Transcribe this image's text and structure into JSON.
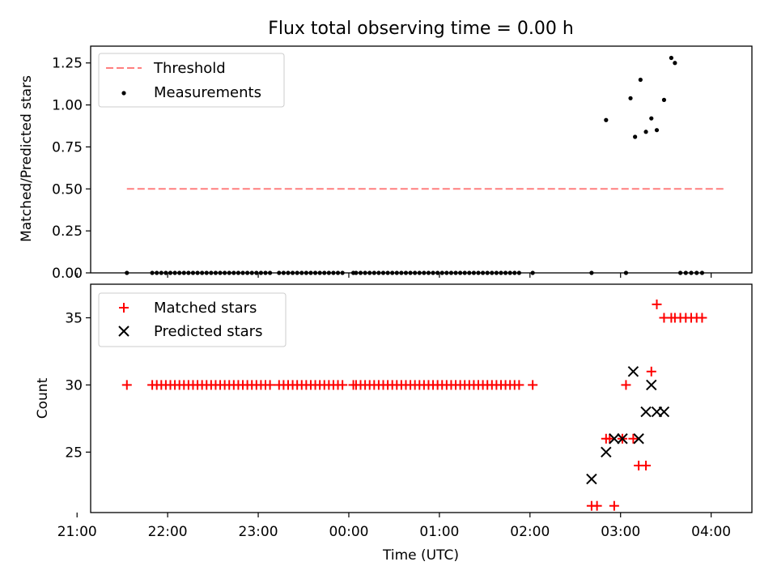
{
  "chart_data": [
    {
      "type": "scatter",
      "title": "Flux total observing time = 0.00 h",
      "ylabel": "Matched/Predicted stars",
      "xlabel": "",
      "xlim": [
        21.15,
        28.45
      ],
      "ylim": [
        0,
        1.35
      ],
      "yticks": [
        0.0,
        0.25,
        0.5,
        0.75,
        1.0,
        1.25
      ],
      "ytick_labels": [
        "0.00",
        "0.25",
        "0.50",
        "0.75",
        "1.00",
        "1.25"
      ],
      "legend": {
        "position": "top-left",
        "entries": [
          "Threshold",
          "Measurements"
        ]
      },
      "series": [
        {
          "name": "Threshold",
          "style": "dashed-line",
          "color": "#ff7f7f",
          "x": [
            21.55,
            28.17
          ],
          "y": [
            0.5,
            0.5
          ]
        },
        {
          "name": "Measurements",
          "style": "dot",
          "color": "#000000",
          "x": [
            21.55,
            21.83,
            21.88,
            21.93,
            21.98,
            22.03,
            22.08,
            22.13,
            22.18,
            22.23,
            22.28,
            22.33,
            22.38,
            22.43,
            22.48,
            22.53,
            22.58,
            22.63,
            22.68,
            22.73,
            22.78,
            22.83,
            22.88,
            22.93,
            22.98,
            23.03,
            23.08,
            23.13,
            23.23,
            23.28,
            23.33,
            23.38,
            23.43,
            23.48,
            23.53,
            23.58,
            23.63,
            23.68,
            23.73,
            23.78,
            23.83,
            23.88,
            23.93,
            24.05,
            24.08,
            24.13,
            24.18,
            24.23,
            24.28,
            24.33,
            24.38,
            24.43,
            24.48,
            24.53,
            24.58,
            24.63,
            24.68,
            24.73,
            24.78,
            24.83,
            24.88,
            24.93,
            24.98,
            25.03,
            25.08,
            25.13,
            25.18,
            25.23,
            25.28,
            25.33,
            25.38,
            25.43,
            25.48,
            25.53,
            25.58,
            25.63,
            25.68,
            25.73,
            25.78,
            25.83,
            25.88,
            26.03,
            26.68,
            26.84,
            27.06,
            27.11,
            27.16,
            27.22,
            27.28,
            27.34,
            27.4,
            27.48,
            27.56,
            27.6,
            27.66,
            27.72,
            27.78,
            27.84,
            27.9
          ],
          "y": [
            0,
            0,
            0,
            0,
            0,
            0,
            0,
            0,
            0,
            0,
            0,
            0,
            0,
            0,
            0,
            0,
            0,
            0,
            0,
            0,
            0,
            0,
            0,
            0,
            0,
            0,
            0,
            0,
            0,
            0,
            0,
            0,
            0,
            0,
            0,
            0,
            0,
            0,
            0,
            0,
            0,
            0,
            0,
            0,
            0,
            0,
            0,
            0,
            0,
            0,
            0,
            0,
            0,
            0,
            0,
            0,
            0,
            0,
            0,
            0,
            0,
            0,
            0,
            0,
            0,
            0,
            0,
            0,
            0,
            0,
            0,
            0,
            0,
            0,
            0,
            0,
            0,
            0,
            0,
            0,
            0,
            0,
            0,
            0.91,
            0,
            1.04,
            0.81,
            1.15,
            0.84,
            0.92,
            0.85,
            1.03,
            1.28,
            1.25,
            0,
            0,
            0,
            0,
            0
          ]
        }
      ]
    },
    {
      "type": "scatter",
      "title": "",
      "ylabel": "Count",
      "xlabel": "Time (UTC)",
      "xlim": [
        21.15,
        28.45
      ],
      "ylim": [
        20.5,
        37.5
      ],
      "yticks": [
        25,
        30,
        35
      ],
      "ytick_labels": [
        "25",
        "30",
        "35"
      ],
      "xticks": [
        21,
        22,
        23,
        24,
        25,
        26,
        27,
        28
      ],
      "xtick_labels": [
        "21:00",
        "22:00",
        "23:00",
        "00:00",
        "01:00",
        "02:00",
        "03:00",
        "04:00"
      ],
      "legend": {
        "position": "top-left",
        "entries": [
          "Matched stars",
          "Predicted stars"
        ]
      },
      "series": [
        {
          "name": "Matched stars",
          "marker": "plus",
          "color": "#ff0000",
          "x": [
            21.55,
            21.83,
            21.88,
            21.93,
            21.98,
            22.03,
            22.08,
            22.13,
            22.18,
            22.23,
            22.28,
            22.33,
            22.38,
            22.43,
            22.48,
            22.53,
            22.58,
            22.63,
            22.68,
            22.73,
            22.78,
            22.83,
            22.88,
            22.93,
            22.98,
            23.03,
            23.08,
            23.13,
            23.23,
            23.28,
            23.33,
            23.38,
            23.43,
            23.48,
            23.53,
            23.58,
            23.63,
            23.68,
            23.73,
            23.78,
            23.83,
            23.88,
            23.93,
            24.05,
            24.08,
            24.13,
            24.18,
            24.23,
            24.28,
            24.33,
            24.38,
            24.43,
            24.48,
            24.53,
            24.58,
            24.63,
            24.68,
            24.73,
            24.78,
            24.83,
            24.88,
            24.93,
            24.98,
            25.03,
            25.08,
            25.13,
            25.18,
            25.23,
            25.28,
            25.33,
            25.38,
            25.43,
            25.48,
            25.53,
            25.58,
            25.63,
            25.68,
            25.73,
            25.78,
            25.83,
            25.88,
            26.03,
            26.68,
            26.74,
            26.84,
            26.88,
            26.93,
            27.02,
            27.06,
            27.14,
            27.2,
            27.28,
            27.34,
            27.4,
            27.48,
            27.56,
            27.6,
            27.66,
            27.72,
            27.78,
            27.84,
            27.9
          ],
          "y": [
            30,
            30,
            30,
            30,
            30,
            30,
            30,
            30,
            30,
            30,
            30,
            30,
            30,
            30,
            30,
            30,
            30,
            30,
            30,
            30,
            30,
            30,
            30,
            30,
            30,
            30,
            30,
            30,
            30,
            30,
            30,
            30,
            30,
            30,
            30,
            30,
            30,
            30,
            30,
            30,
            30,
            30,
            30,
            30,
            30,
            30,
            30,
            30,
            30,
            30,
            30,
            30,
            30,
            30,
            30,
            30,
            30,
            30,
            30,
            30,
            30,
            30,
            30,
            30,
            30,
            30,
            30,
            30,
            30,
            30,
            30,
            30,
            30,
            30,
            30,
            30,
            30,
            30,
            30,
            30,
            30,
            30,
            21,
            21,
            26,
            26,
            21,
            26,
            30,
            26,
            24,
            24,
            31,
            36,
            35,
            35,
            35,
            35,
            35,
            35,
            35,
            35
          ]
        },
        {
          "name": "Predicted stars",
          "marker": "x",
          "color": "#000000",
          "x": [
            26.68,
            26.84,
            26.93,
            27.02,
            27.14,
            27.2,
            27.28,
            27.34,
            27.4,
            27.48
          ],
          "y": [
            23,
            25,
            26,
            26,
            31,
            26,
            28,
            30,
            28,
            28
          ]
        }
      ]
    }
  ]
}
